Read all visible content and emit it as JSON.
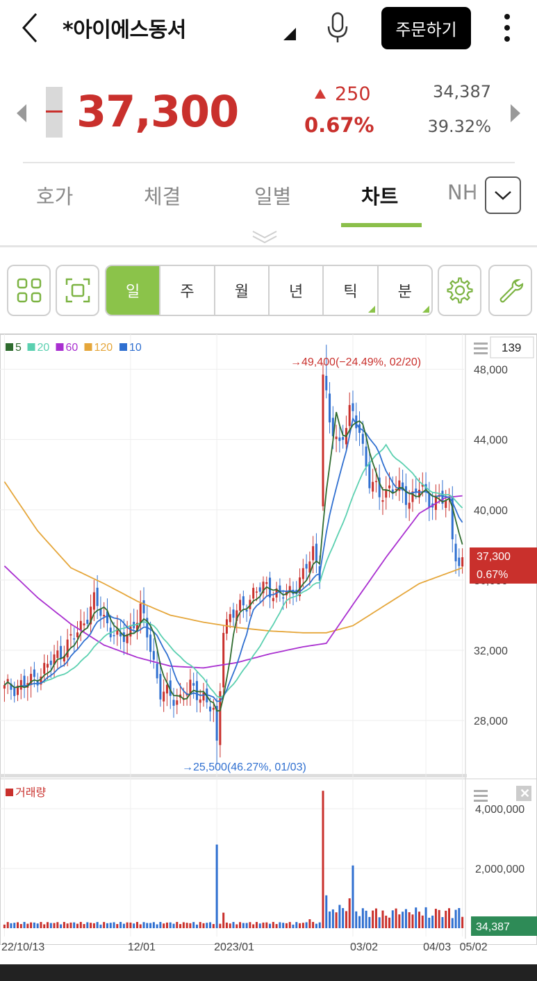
{
  "header": {
    "title": "*아이에스동서",
    "order_label": "주문하기"
  },
  "price": {
    "current": "37,300",
    "change": "250",
    "change_pct": "0.67%",
    "volume": "34,387",
    "rate": "39.32%"
  },
  "tabs": [
    "호가",
    "체결",
    "일별",
    "차트",
    "NH"
  ],
  "active_tab": "차트",
  "periods": [
    "일",
    "주",
    "월",
    "년",
    "틱",
    "분"
  ],
  "active_period": "일",
  "colors": {
    "up": "#c9302c",
    "down": "#2f6fd0",
    "accent": "#8bc34a",
    "ma5": "#2e6b2e",
    "ma20": "#5bd0b0",
    "ma60": "#a92fd0",
    "ma120": "#e5a63a",
    "ma10": "#2f6fd0"
  },
  "icons": [
    "back-icon",
    "dropdown-triangle-icon",
    "mic-icon",
    "more-vertical-icon",
    "chevron-down-icon",
    "grid-icon",
    "fullscreen-icon",
    "gear-icon",
    "wrench-icon"
  ],
  "chart_data": {
    "type": "candlestick",
    "legend": [
      {
        "name": "5",
        "color": "#2e6b2e"
      },
      {
        "name": "20",
        "color": "#5bd0b0"
      },
      {
        "name": "60",
        "color": "#a92fd0"
      },
      {
        "name": "120",
        "color": "#e5a63a"
      },
      {
        "name": "10",
        "color": "#2f6fd0"
      }
    ],
    "count_label": "139",
    "ylim": [
      25000,
      50000
    ],
    "yticks": [
      28000,
      32000,
      36000,
      40000,
      44000,
      48000
    ],
    "ytick_labels": [
      "28,000",
      "32,000",
      "36,000",
      "40,000",
      "44,000",
      "48,000"
    ],
    "x_labels": [
      "22/10/13",
      "12/01",
      "2023/01",
      "03/02",
      "04/03",
      "05/02"
    ],
    "high_annotation": "49,400(−24.49%, 02/20)",
    "low_annotation": "25,500(46.27%, 01/03)",
    "current_label": "37,300",
    "current_pct_label": "0.67%",
    "close_anchors": [
      [
        0,
        29800
      ],
      [
        8,
        30200
      ],
      [
        15,
        31500
      ],
      [
        22,
        33000
      ],
      [
        27,
        34800
      ],
      [
        31,
        33500
      ],
      [
        35,
        32500
      ],
      [
        38,
        33200
      ],
      [
        41,
        34300
      ],
      [
        44,
        32200
      ],
      [
        47,
        29600
      ],
      [
        52,
        29200
      ],
      [
        56,
        29800
      ],
      [
        60,
        29400
      ],
      [
        63,
        28400
      ],
      [
        64,
        26400
      ],
      [
        66,
        33500
      ],
      [
        70,
        34200
      ],
      [
        75,
        35200
      ],
      [
        79,
        35700
      ],
      [
        83,
        35000
      ],
      [
        87,
        35500
      ],
      [
        90,
        36200
      ],
      [
        93,
        37700
      ],
      [
        95,
        36500
      ],
      [
        96,
        47700
      ],
      [
        98,
        44800
      ],
      [
        101,
        43800
      ],
      [
        104,
        45500
      ],
      [
        107,
        44600
      ],
      [
        110,
        41600
      ],
      [
        113,
        40800
      ],
      [
        116,
        41300
      ],
      [
        119,
        41100
      ],
      [
        122,
        40600
      ],
      [
        125,
        41300
      ],
      [
        128,
        40500
      ],
      [
        131,
        40700
      ],
      [
        134,
        40200
      ],
      [
        135,
        38500
      ],
      [
        137,
        36800
      ],
      [
        138,
        37300
      ]
    ],
    "ma120_anchors": [
      [
        0,
        41600
      ],
      [
        10,
        38800
      ],
      [
        20,
        36700
      ],
      [
        30,
        35800
      ],
      [
        40,
        34800
      ],
      [
        50,
        34000
      ],
      [
        60,
        33600
      ],
      [
        70,
        33300
      ],
      [
        80,
        33100
      ],
      [
        90,
        33000
      ],
      [
        97,
        33000
      ],
      [
        105,
        33400
      ],
      [
        115,
        34600
      ],
      [
        125,
        35800
      ],
      [
        138,
        36700
      ]
    ],
    "ma60_anchors": [
      [
        0,
        36800
      ],
      [
        10,
        35000
      ],
      [
        20,
        33500
      ],
      [
        30,
        32300
      ],
      [
        40,
        31600
      ],
      [
        50,
        31100
      ],
      [
        60,
        31000
      ],
      [
        70,
        31300
      ],
      [
        80,
        31800
      ],
      [
        90,
        32200
      ],
      [
        97,
        32400
      ],
      [
        105,
        34600
      ],
      [
        115,
        37300
      ],
      [
        125,
        39800
      ],
      [
        133,
        40700
      ],
      [
        138,
        40800
      ]
    ],
    "volume": {
      "label": "거래량",
      "ylim": [
        0,
        5000000
      ],
      "yticks": [
        2000000,
        4000000
      ],
      "ytick_labels": [
        "2,000,000",
        "4,000,000"
      ],
      "current_label": "34,387",
      "spikes": [
        [
          64,
          2800000
        ],
        [
          66,
          520000
        ],
        [
          92,
          300000
        ],
        [
          96,
          4600000
        ],
        [
          97,
          1100000
        ],
        [
          105,
          2100000
        ],
        [
          104,
          1000000
        ],
        [
          101,
          780000
        ],
        [
          115,
          420000
        ],
        [
          128,
          350000
        ]
      ]
    }
  }
}
